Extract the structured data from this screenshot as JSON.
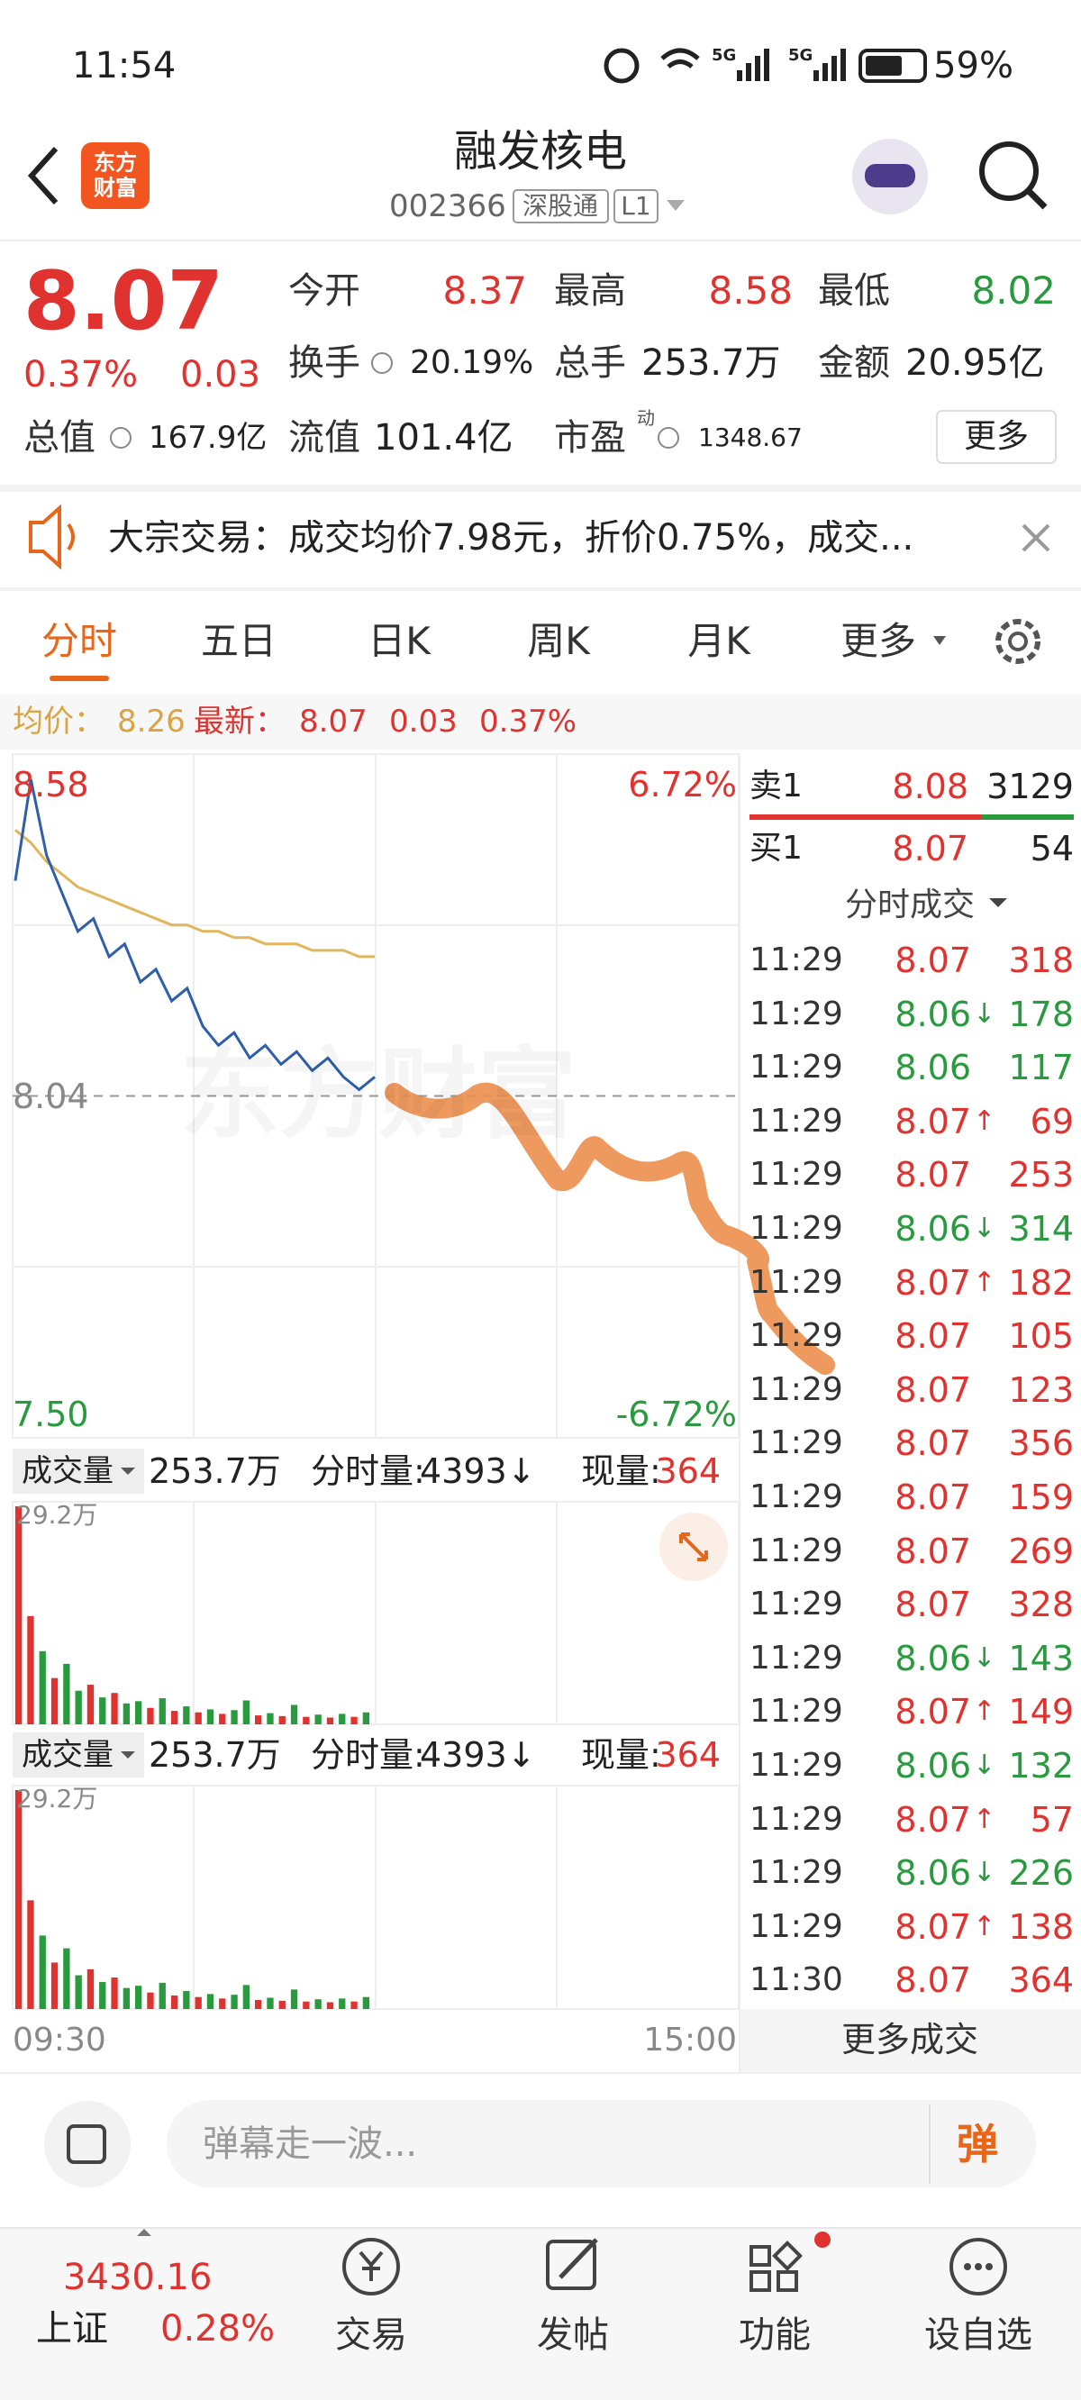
{
  "status_bar": {
    "time": "11:54",
    "network": [
      "5G",
      "5G"
    ],
    "battery": "59%"
  },
  "header": {
    "logo": "东方财富",
    "title": "融发核电",
    "code": "002366",
    "market": "深股通",
    "level": "L1"
  },
  "quote": {
    "price": "8.07",
    "change_pct": "0.37%",
    "change": "0.03",
    "stats": [
      {
        "label": "今开",
        "value": "8.37",
        "color": "#e0332f"
      },
      {
        "label": "最高",
        "value": "8.58",
        "color": "#e0332f"
      },
      {
        "label": "最低",
        "value": "8.02",
        "color": "#2a9a3f"
      },
      {
        "label": "换手",
        "value": "20.19%"
      },
      {
        "label": "总手",
        "value": "253.7万"
      },
      {
        "label": "金额",
        "value": "20.95亿"
      },
      {
        "label": "总值",
        "value": "167.9亿"
      },
      {
        "label": "流值",
        "value": "101.4亿"
      },
      {
        "label": "市盈",
        "label_sup": "动",
        "value": "1348.67"
      }
    ],
    "more": "更多"
  },
  "notice": {
    "text": "大宗交易：成交均价7.98元，折价0.75%，成交..."
  },
  "tabs": [
    "分时",
    "五日",
    "日K",
    "周K",
    "月K",
    "更多"
  ],
  "chart_info": {
    "avg_label": "均价：",
    "avg": "8.26",
    "latest_label": "最新：",
    "latest": "8.07",
    "change": "0.03",
    "change_pct": "0.37%"
  },
  "price_chart": {
    "type": "line",
    "watermark": "东方财富",
    "ylim": [
      7.5,
      8.58
    ],
    "yticks": [
      8.58,
      8.04,
      {
        "value": 7.5,
        "label": "7.50"
      }
    ],
    "y2lim": [
      -6.72,
      6.72
    ],
    "y2ticks": [
      {
        "value": 6.72,
        "label": "6.72%"
      },
      {
        "value": -6.72,
        "label": "-6.72%"
      }
    ],
    "series": [
      {
        "color": "#2f5fa8",
        "values": [
          8.38,
          8.54,
          8.42,
          8.36,
          8.3,
          8.32,
          8.26,
          8.28,
          8.22,
          8.24,
          8.19,
          8.21,
          8.15,
          8.12,
          8.14,
          8.1,
          8.12,
          8.09,
          8.11,
          8.08,
          8.1,
          8.07,
          8.05,
          8.07
        ]
      },
      {
        "color": "#e2b65c",
        "values": [
          8.46,
          8.44,
          8.41,
          8.39,
          8.37,
          8.36,
          8.35,
          8.34,
          8.33,
          8.32,
          8.31,
          8.31,
          8.3,
          8.3,
          8.29,
          8.29,
          8.28,
          8.28,
          8.28,
          8.27,
          8.27,
          8.27,
          8.26,
          8.26
        ]
      }
    ],
    "x_labels": [
      "09:30",
      "15:00"
    ]
  },
  "volume": {
    "type": "bar",
    "label": "成交量",
    "total": "253.7万",
    "minute_label": "分时量:",
    "minute": "4393↓",
    "current_label": "现量:",
    "current": "364",
    "ylim": [
      0,
      29.2
    ],
    "yticks": [
      {
        "value": 29.2,
        "label": "29.2万"
      }
    ],
    "values": [
      29.2,
      14.5,
      9.8,
      6.2,
      8.1,
      4.5,
      5.3,
      3.6,
      4.2,
      2.8,
      3.1,
      2.2,
      3.5,
      1.8,
      2.4,
      1.6,
      2.0,
      1.4,
      1.9,
      3.2,
      1.2,
      1.5,
      1.1,
      2.6,
      1.0,
      1.3,
      0.9,
      1.4,
      1.0,
      1.6
    ],
    "colors": [
      "#e0332f",
      "#e0332f",
      "#2a9a3f",
      "#e0332f",
      "#2a9a3f",
      "#2a9a3f",
      "#e0332f",
      "#2a9a3f",
      "#e0332f",
      "#2a9a3f",
      "#2a9a3f",
      "#e0332f",
      "#2a9a3f",
      "#e0332f",
      "#2a9a3f",
      "#e0332f",
      "#2a9a3f",
      "#e0332f",
      "#2a9a3f",
      "#2a9a3f",
      "#e0332f",
      "#2a9a3f",
      "#e0332f",
      "#2a9a3f",
      "#e0332f",
      "#2a9a3f",
      "#e0332f",
      "#2a9a3f",
      "#e0332f",
      "#2a9a3f"
    ]
  },
  "order_book": [
    {
      "label": "卖1",
      "price": "8.08",
      "volume": "3129"
    },
    {
      "label": "买1",
      "price": "8.07",
      "volume": "54"
    }
  ],
  "trades": {
    "title": "分时成交",
    "more": "更多成交",
    "rows": [
      {
        "time": "11:29",
        "price": "8.07",
        "volume": "318",
        "color": "#e0332f"
      },
      {
        "time": "11:29",
        "price": "8.06",
        "arrow": "↓",
        "volume": "178",
        "color": "#2a9a3f"
      },
      {
        "time": "11:29",
        "price": "8.06",
        "volume": "117",
        "color": "#2a9a3f"
      },
      {
        "time": "11:29",
        "price": "8.07",
        "arrow": "↑",
        "volume": "69",
        "color": "#e0332f"
      },
      {
        "time": "11:29",
        "price": "8.07",
        "volume": "253",
        "color": "#e0332f"
      },
      {
        "time": "11:29",
        "price": "8.06",
        "arrow": "↓",
        "volume": "314",
        "color": "#2a9a3f"
      },
      {
        "time": "11:29",
        "price": "8.07",
        "arrow": "↑",
        "volume": "182",
        "color": "#e0332f"
      },
      {
        "time": "11:29",
        "price": "8.07",
        "volume": "105",
        "color": "#e0332f"
      },
      {
        "time": "11:29",
        "price": "8.07",
        "volume": "123",
        "color": "#e0332f"
      },
      {
        "time": "11:29",
        "price": "8.07",
        "volume": "356",
        "color": "#e0332f"
      },
      {
        "time": "11:29",
        "price": "8.07",
        "volume": "159",
        "color": "#e0332f"
      },
      {
        "time": "11:29",
        "price": "8.07",
        "volume": "269",
        "color": "#e0332f"
      },
      {
        "time": "11:29",
        "price": "8.07",
        "volume": "328",
        "color": "#e0332f"
      },
      {
        "time": "11:29",
        "price": "8.06",
        "arrow": "↓",
        "volume": "143",
        "color": "#2a9a3f"
      },
      {
        "time": "11:29",
        "price": "8.07",
        "arrow": "↑",
        "volume": "149",
        "color": "#e0332f"
      },
      {
        "time": "11:29",
        "price": "8.06",
        "arrow": "↓",
        "volume": "132",
        "color": "#2a9a3f"
      },
      {
        "time": "11:29",
        "price": "8.07",
        "arrow": "↑",
        "volume": "57",
        "color": "#e0332f"
      },
      {
        "time": "11:29",
        "price": "8.06",
        "arrow": "↓",
        "volume": "226",
        "color": "#2a9a3f"
      },
      {
        "time": "11:29",
        "price": "8.07",
        "arrow": "↑",
        "volume": "138",
        "color": "#e0332f"
      },
      {
        "time": "11:30",
        "price": "8.07",
        "volume": "364",
        "color": "#e0332f"
      }
    ]
  },
  "comment_bar": {
    "placeholder": "弹幕走一波...",
    "button": "弹"
  },
  "bottom_nav": {
    "index_value": "3430.16",
    "index_name": "上证",
    "index_change": "0.28%",
    "items": [
      "交易",
      "发帖",
      "功能",
      "设自选"
    ]
  }
}
